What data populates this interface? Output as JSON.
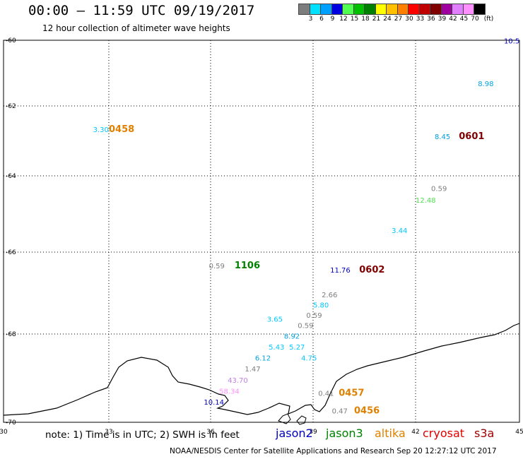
{
  "header": {
    "title": "00:00 – 11:59 UTC 09/19/2017",
    "subtitle": "12 hour collection of altimeter wave heights"
  },
  "color_scale": {
    "unit": "(ft)",
    "labels": [
      "3",
      "6",
      "9",
      "12",
      "15",
      "18",
      "21",
      "24",
      "27",
      "30",
      "33",
      "36",
      "39",
      "42",
      "45",
      "70"
    ],
    "colors": [
      "#7d7d7d",
      "#00e0ff",
      "#00a0ff",
      "#0000e0",
      "#50ff50",
      "#00c000",
      "#008000",
      "#ffff00",
      "#ffc000",
      "#ff8000",
      "#ff0000",
      "#c00000",
      "#800000",
      "#a000a0",
      "#e080ff",
      "#ff90ff",
      "#000000"
    ]
  },
  "map": {
    "lon_ticks": [
      "30",
      "33",
      "36",
      "39",
      "42",
      "45"
    ],
    "lat_ticks": [
      "-60",
      "-62",
      "-64",
      "-66",
      "-68",
      "-70"
    ],
    "observations": [
      {
        "text": "3.30",
        "lon": 32.55,
        "lat": -62.75,
        "color": "#00c8ff",
        "size": 10
      },
      {
        "text": "0458",
        "lon": 33.0,
        "lat": -62.75,
        "color": "#e08000",
        "size": 13
      },
      {
        "text": "10.5",
        "lon": 44.55,
        "lat": -60.1,
        "color": "#0000c0",
        "size": 10
      },
      {
        "text": "8.98",
        "lon": 43.8,
        "lat": -61.4,
        "color": "#00a0e0",
        "size": 10
      },
      {
        "text": "8.45",
        "lon": 42.55,
        "lat": -62.95,
        "color": "#00a0e0",
        "size": 10
      },
      {
        "text": "0601",
        "lon": 43.25,
        "lat": -62.95,
        "color": "#800000",
        "size": 13
      },
      {
        "text": "0.59",
        "lon": 42.45,
        "lat": -64.4,
        "color": "#7d7d7d",
        "size": 10
      },
      {
        "text": "12.48",
        "lon": 42.0,
        "lat": -64.7,
        "color": "#50e050",
        "size": 10
      },
      {
        "text": "3.44",
        "lon": 41.3,
        "lat": -65.5,
        "color": "#00c8ff",
        "size": 10
      },
      {
        "text": "0.59",
        "lon": 35.95,
        "lat": -66.4,
        "color": "#7d7d7d",
        "size": 10
      },
      {
        "text": "1106",
        "lon": 36.7,
        "lat": -66.4,
        "color": "#008000",
        "size": 13
      },
      {
        "text": "11.76",
        "lon": 39.5,
        "lat": -66.5,
        "color": "#0000c0",
        "size": 10
      },
      {
        "text": "0602",
        "lon": 40.35,
        "lat": -66.5,
        "color": "#800000",
        "size": 13
      },
      {
        "text": "2.66",
        "lon": 39.25,
        "lat": -67.1,
        "color": "#7d7d7d",
        "size": 10
      },
      {
        "text": "5.80",
        "lon": 39.0,
        "lat": -67.35,
        "color": "#00c8ff",
        "size": 10
      },
      {
        "text": "0.59",
        "lon": 38.8,
        "lat": -67.6,
        "color": "#7d7d7d",
        "size": 10
      },
      {
        "text": "3.65",
        "lon": 37.65,
        "lat": -67.7,
        "color": "#00c8ff",
        "size": 10
      },
      {
        "text": "0.59",
        "lon": 38.55,
        "lat": -67.85,
        "color": "#7d7d7d",
        "size": 10
      },
      {
        "text": "8.92",
        "lon": 38.15,
        "lat": -68.1,
        "color": "#00a0e0",
        "size": 10
      },
      {
        "text": "5.43",
        "lon": 37.7,
        "lat": -68.35,
        "color": "#00c8ff",
        "size": 10
      },
      {
        "text": "5.27",
        "lon": 38.3,
        "lat": -68.35,
        "color": "#00c8ff",
        "size": 10
      },
      {
        "text": "6.12",
        "lon": 37.3,
        "lat": -68.6,
        "color": "#00a0e0",
        "size": 10
      },
      {
        "text": "4.75",
        "lon": 38.65,
        "lat": -68.6,
        "color": "#00c8ff",
        "size": 10
      },
      {
        "text": "1.47",
        "lon": 37.0,
        "lat": -68.85,
        "color": "#7d7d7d",
        "size": 10
      },
      {
        "text": "43.70",
        "lon": 36.5,
        "lat": -69.1,
        "color": "#c080e0",
        "size": 10
      },
      {
        "text": "58.34",
        "lon": 36.25,
        "lat": -69.35,
        "color": "#ff90ff",
        "size": 10
      },
      {
        "text": "10.14",
        "lon": 35.8,
        "lat": -69.6,
        "color": "#0000c0",
        "size": 10
      },
      {
        "text": "0.41",
        "lon": 39.15,
        "lat": -69.4,
        "color": "#7d7d7d",
        "size": 10
      },
      {
        "text": "0457",
        "lon": 39.75,
        "lat": -69.4,
        "color": "#e08000",
        "size": 13
      },
      {
        "text": "0.47",
        "lon": 39.55,
        "lat": -69.8,
        "color": "#7d7d7d",
        "size": 10
      },
      {
        "text": "0456",
        "lon": 40.2,
        "lat": -69.8,
        "color": "#e08000",
        "size": 13
      }
    ]
  },
  "note": {
    "text": "note:  1) Time is in UTC;  2) SWH is in feet",
    "satellites": [
      {
        "name": "jason2",
        "color": "#0000c0"
      },
      {
        "name": "jason3",
        "color": "#008000"
      },
      {
        "name": "altika",
        "color": "#e08000"
      },
      {
        "name": "cryosat",
        "color": "#e00000"
      },
      {
        "name": "s3a",
        "color": "#a00000"
      }
    ]
  },
  "footer": "NOAA/NESDIS Center for Satellite Applications and Research    Sep 20 12:27:12 UTC 2017"
}
